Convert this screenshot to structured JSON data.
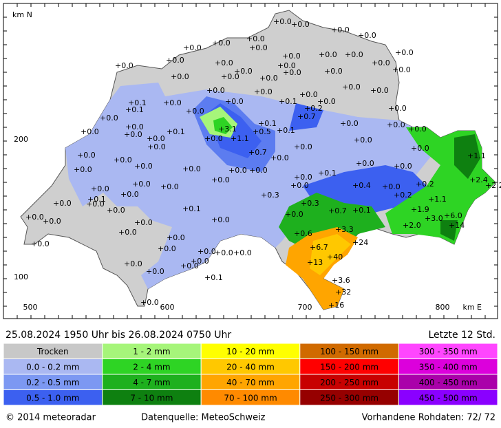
{
  "map": {
    "axes": {
      "y_title": "km N",
      "y_labels": [
        "200",
        "100"
      ],
      "x_labels": [
        "500",
        "600",
        "700",
        "800"
      ],
      "x_title": "km E"
    },
    "stations": [
      "+0.0",
      "+0.0",
      "+0.0",
      "+0.0",
      "+0.0",
      "+0.0",
      "+0.0",
      "+0.0",
      "+0.0",
      "+0.0",
      "+0.0",
      "+0.0",
      "+0.0",
      "+0.0",
      "+0.0",
      "+0.0",
      "+0.0",
      "+0.0",
      "+0.0",
      "+0.0",
      "+0.0",
      "+0.0",
      "+0.0",
      "+0.0",
      "+0.0",
      "+0.0",
      "+0.0",
      "+0.0",
      "+0.0",
      "+0.0",
      "+0.1",
      "+0.1",
      "+0.0",
      "+0.1",
      "+0.2",
      "+0.0",
      "+0.0",
      "+0.0",
      "+0.0",
      "+0.7",
      "+0.0",
      "+0.0",
      "+0.0",
      "+0.1",
      "+0.0",
      "+3.1",
      "+0.1",
      "+0.5",
      "+0.1",
      "+0.0",
      "+0.0",
      "+0.0",
      "+0.0",
      "+0.0",
      "+1.1",
      "+0.0",
      "+0.0",
      "+0.0",
      "+0.0",
      "+0.0",
      "+0.7",
      "+0.0",
      "+1.1",
      "+0.0",
      "+0.0",
      "+0.0",
      "+0.0",
      "+0.0",
      "+0.1",
      "+0.0",
      "+0.0",
      "+2.4",
      "+2.2",
      "+0.0",
      "+0.0",
      "+0.0",
      "+0.0",
      "+0.0",
      "+0.0",
      "+0.4",
      "+0.0",
      "+0.2",
      "+0.0",
      "+0.1",
      "+0.3",
      "+0.2",
      "+1.1",
      "+0.0",
      "+0.0",
      "+0.3",
      "+0.0",
      "+0.1",
      "+0.7",
      "+0.1",
      "+1.9",
      "+3.0",
      "+6.0",
      "+0.0",
      "+0.0",
      "+0.0",
      "+0.0",
      "+14",
      "+2.0",
      "+0.0",
      "+3.3",
      "+0.0",
      "+0.6",
      "+24",
      "+0.0",
      "+0.0",
      "+6.7",
      "+0.0",
      "+0.0",
      "+0.0",
      "+0.0",
      "+40",
      "+13",
      "+0.0",
      "+0.0",
      "+0.0",
      "+0.0",
      "+3.6",
      "+0.1",
      "+32",
      "+16",
      "+0.0"
    ]
  },
  "header": {
    "period": "25.08.2024  1950 Uhr   bis   26.08.2024  0750 Uhr",
    "window": "Letzte 12 Std."
  },
  "legend": [
    {
      "label": "Trocken",
      "color": "#c8c8c8"
    },
    {
      "label": "0.0 - 0.2 mm",
      "color": "#aab8f2"
    },
    {
      "label": "0.2 - 0.5 mm",
      "color": "#7c98f2"
    },
    {
      "label": "0.5 - 1.0 mm",
      "color": "#3c60f0"
    },
    {
      "label": "1 - 2 mm",
      "color": "#a6f57a"
    },
    {
      "label": "2 - 4 mm",
      "color": "#2ed424"
    },
    {
      "label": "4 - 7 mm",
      "color": "#1eb01e"
    },
    {
      "label": "7 - 10 mm",
      "color": "#0e8010"
    },
    {
      "label": "10 - 20 mm",
      "color": "#ffff00"
    },
    {
      "label": "20 - 40 mm",
      "color": "#ffc800"
    },
    {
      "label": "40 - 70 mm",
      "color": "#ffa500"
    },
    {
      "label": "70 - 100 mm",
      "color": "#ff8a00"
    },
    {
      "label": "100 - 150 mm",
      "color": "#d06a00"
    },
    {
      "label": "150 - 200 mm",
      "color": "#ff0000"
    },
    {
      "label": "200 - 250 mm",
      "color": "#c80000"
    },
    {
      "label": "250 - 300 mm",
      "color": "#960000"
    },
    {
      "label": "300 - 350 mm",
      "color": "#ff46ff"
    },
    {
      "label": "350 - 400 mm",
      "color": "#dc00dc"
    },
    {
      "label": "400 - 450 mm",
      "color": "#aa00aa"
    },
    {
      "label": "450 - 500 mm",
      "color": "#8a00ff"
    }
  ],
  "footer": {
    "copyright": "© 2014  meteoradar",
    "source": "Datenquelle: MeteoSchweiz",
    "raw": "Vorhandene Rohdaten:  72/ 72"
  }
}
